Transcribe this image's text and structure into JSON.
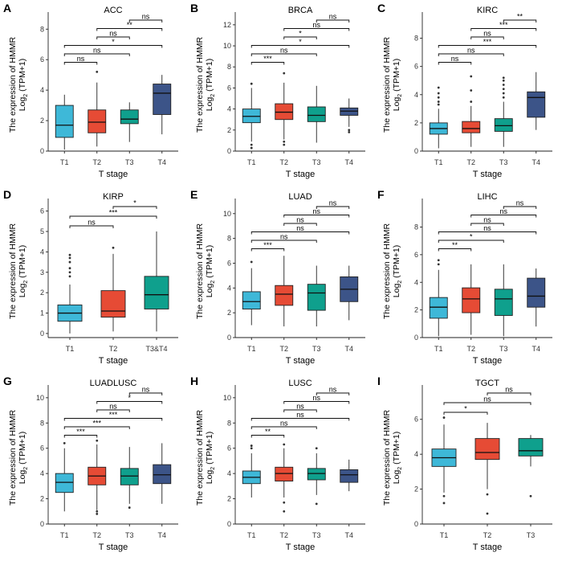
{
  "chart_data": [
    {
      "type": "boxplot",
      "letter": "A",
      "title": "ACC",
      "xlabel": "T stage",
      "ylabel_line1": "The expression of HMMR",
      "ylabel_line2_main": "Log",
      "ylabel_line2_sub": "2",
      "ylabel_line2_rest": " (TPM+1)",
      "ylim": [
        0,
        8.7
      ],
      "yticks": [
        0,
        2,
        4,
        6,
        8
      ],
      "categories": [
        "T1",
        "T2",
        "T3",
        "T4"
      ],
      "boxes": [
        {
          "q1": 0.9,
          "median": 1.7,
          "q3": 3.0,
          "low": 0.1,
          "high": 3.7,
          "outliers": []
        },
        {
          "q1": 1.2,
          "median": 1.9,
          "q3": 2.7,
          "low": 0.3,
          "high": 4.5,
          "outliers": [
            5.2
          ]
        },
        {
          "q1": 1.8,
          "median": 2.1,
          "q3": 2.7,
          "low": 0.6,
          "high": 3.2,
          "outliers": []
        },
        {
          "q1": 2.4,
          "median": 3.8,
          "q3": 4.4,
          "low": 1.1,
          "high": 5.0,
          "outliers": []
        }
      ],
      "comparisons": [
        {
          "from": "T1",
          "to": "T2",
          "label": "ns"
        },
        {
          "from": "T1",
          "to": "T3",
          "label": "ns"
        },
        {
          "from": "T1",
          "to": "T4",
          "label": "*"
        },
        {
          "from": "T2",
          "to": "T3",
          "label": "ns"
        },
        {
          "from": "T2",
          "to": "T4",
          "label": "**"
        },
        {
          "from": "T3",
          "to": "T4",
          "label": "ns"
        }
      ]
    },
    {
      "type": "boxplot",
      "letter": "B",
      "title": "BRCA",
      "xlabel": "T stage",
      "ylabel_line1": "The expression of HMMR",
      "ylabel_line2_main": "Log",
      "ylabel_line2_sub": "2",
      "ylabel_line2_rest": " (TPM+1)",
      "ylim": [
        0,
        12.6
      ],
      "yticks": [
        0,
        2,
        4,
        6,
        8,
        10,
        12
      ],
      "categories": [
        "T1",
        "T2",
        "T3",
        "T4"
      ],
      "boxes": [
        {
          "q1": 2.7,
          "median": 3.3,
          "q3": 4.0,
          "low": 0.9,
          "high": 6.0,
          "outliers": [
            6.4,
            0.6,
            0.3
          ]
        },
        {
          "q1": 3.0,
          "median": 3.7,
          "q3": 4.5,
          "low": 1.1,
          "high": 6.5,
          "outliers": [
            7.4,
            0.9,
            0.6
          ]
        },
        {
          "q1": 2.8,
          "median": 3.4,
          "q3": 4.2,
          "low": 0.8,
          "high": 6.2,
          "outliers": []
        },
        {
          "q1": 3.4,
          "median": 3.8,
          "q3": 4.1,
          "low": 2.3,
          "high": 5.0,
          "outliers": [
            2.0,
            1.8
          ]
        }
      ],
      "comparisons": [
        {
          "from": "T1",
          "to": "T2",
          "label": "***"
        },
        {
          "from": "T1",
          "to": "T3",
          "label": "ns"
        },
        {
          "from": "T1",
          "to": "T4",
          "label": "*"
        },
        {
          "from": "T2",
          "to": "T3",
          "label": "*"
        },
        {
          "from": "T2",
          "to": "T4",
          "label": "ns"
        },
        {
          "from": "T3",
          "to": "T4",
          "label": "ns"
        }
      ]
    },
    {
      "type": "boxplot",
      "letter": "C",
      "title": "KIRC",
      "xlabel": "T stage",
      "ylabel_line1": "The expression of HMMR",
      "ylabel_line2_main": "Log",
      "ylabel_line2_sub": "2",
      "ylabel_line2_rest": " (TPM+1)",
      "ylim": [
        0,
        9.4
      ],
      "yticks": [
        0,
        2,
        4,
        6,
        8
      ],
      "categories": [
        "T1",
        "T2",
        "T3",
        "T4"
      ],
      "boxes": [
        {
          "q1": 1.2,
          "median": 1.6,
          "q3": 2.0,
          "low": 0.2,
          "high": 3.0,
          "outliers": [
            3.3,
            3.5,
            3.8,
            4.1,
            4.5
          ]
        },
        {
          "q1": 1.3,
          "median": 1.6,
          "q3": 2.1,
          "low": 0.3,
          "high": 3.2,
          "outliers": [
            3.5,
            4.3,
            5.3
          ]
        },
        {
          "q1": 1.4,
          "median": 1.8,
          "q3": 2.3,
          "low": 0.3,
          "high": 3.5,
          "outliers": [
            3.8,
            4.1,
            4.4,
            4.7,
            5.0,
            5.2
          ]
        },
        {
          "q1": 2.4,
          "median": 3.8,
          "q3": 4.2,
          "low": 1.5,
          "high": 5.6,
          "outliers": []
        }
      ],
      "comparisons": [
        {
          "from": "T1",
          "to": "T2",
          "label": "ns"
        },
        {
          "from": "T1",
          "to": "T3",
          "label": "ns"
        },
        {
          "from": "T1",
          "to": "T4",
          "label": "***"
        },
        {
          "from": "T2",
          "to": "T3",
          "label": "ns"
        },
        {
          "from": "T2",
          "to": "T4",
          "label": "***"
        },
        {
          "from": "T3",
          "to": "T4",
          "label": "**"
        }
      ]
    },
    {
      "type": "boxplot",
      "letter": "D",
      "title": "KIRP",
      "xlabel": "T stage",
      "ylabel_line1": "The expression of HMMR",
      "ylabel_line2_main": "Log",
      "ylabel_line2_sub": "2",
      "ylabel_line2_rest": " (TPM+1)",
      "ylim": [
        -0.2,
        6.3
      ],
      "yticks": [
        0,
        1,
        2,
        3,
        4,
        5,
        6
      ],
      "categories": [
        "T1",
        "T2",
        "T3&T4"
      ],
      "boxes": [
        {
          "q1": 0.6,
          "median": 1.0,
          "q3": 1.4,
          "low": 0.0,
          "high": 2.4,
          "outliers": [
            2.8,
            3.0,
            3.2,
            3.5,
            3.7,
            3.85
          ]
        },
        {
          "q1": 0.8,
          "median": 1.1,
          "q3": 2.1,
          "low": 0.1,
          "high": 3.9,
          "outliers": [
            4.2
          ]
        },
        {
          "q1": 1.2,
          "median": 1.9,
          "q3": 2.8,
          "low": 0.1,
          "high": 5.0,
          "outliers": []
        }
      ],
      "comparisons": [
        {
          "from": "T1",
          "to": "T2",
          "label": "ns"
        },
        {
          "from": "T1",
          "to": "T3&T4",
          "label": "***"
        },
        {
          "from": "T2",
          "to": "T3&T4",
          "label": "*"
        }
      ]
    },
    {
      "type": "boxplot",
      "letter": "E",
      "title": "LUAD",
      "xlabel": "T stage",
      "ylabel_line1": "The expression of HMMR",
      "ylabel_line2_main": "Log",
      "ylabel_line2_sub": "2",
      "ylabel_line2_rest": " (TPM+1)",
      "ylim": [
        0,
        10.7
      ],
      "yticks": [
        0,
        2,
        4,
        6,
        8,
        10
      ],
      "categories": [
        "T1",
        "T2",
        "T3",
        "T4"
      ],
      "boxes": [
        {
          "q1": 2.3,
          "median": 2.9,
          "q3": 3.7,
          "low": 1.0,
          "high": 5.6,
          "outliers": [
            6.1
          ]
        },
        {
          "q1": 2.6,
          "median": 3.5,
          "q3": 4.2,
          "low": 0.9,
          "high": 6.6,
          "outliers": []
        },
        {
          "q1": 2.2,
          "median": 3.6,
          "q3": 4.3,
          "low": 0.9,
          "high": 5.8,
          "outliers": []
        },
        {
          "q1": 2.9,
          "median": 3.9,
          "q3": 4.9,
          "low": 1.4,
          "high": 5.8,
          "outliers": []
        }
      ],
      "comparisons": [
        {
          "from": "T1",
          "to": "T2",
          "label": "***"
        },
        {
          "from": "T1",
          "to": "T3",
          "label": "ns"
        },
        {
          "from": "T1",
          "to": "T4",
          "label": "ns"
        },
        {
          "from": "T2",
          "to": "T3",
          "label": "ns"
        },
        {
          "from": "T2",
          "to": "T4",
          "label": "ns"
        },
        {
          "from": "T3",
          "to": "T4",
          "label": "ns"
        }
      ]
    },
    {
      "type": "boxplot",
      "letter": "F",
      "title": "LIHC",
      "xlabel": "T stage",
      "ylabel_line1": "The expression of HMMR",
      "ylabel_line2_main": "Log",
      "ylabel_line2_sub": "2",
      "ylabel_line2_rest": " (TPM+1)",
      "ylim": [
        0,
        9.6
      ],
      "yticks": [
        0,
        2,
        4,
        6,
        8
      ],
      "categories": [
        "T1",
        "T2",
        "T3",
        "T4"
      ],
      "boxes": [
        {
          "q1": 1.4,
          "median": 2.2,
          "q3": 2.9,
          "low": 0.1,
          "high": 4.9,
          "outliers": [
            5.3,
            5.6
          ]
        },
        {
          "q1": 1.8,
          "median": 2.8,
          "q3": 3.6,
          "low": 0.2,
          "high": 5.3,
          "outliers": []
        },
        {
          "q1": 1.6,
          "median": 2.8,
          "q3": 3.5,
          "low": 0.1,
          "high": 5.3,
          "outliers": []
        },
        {
          "q1": 2.2,
          "median": 3.0,
          "q3": 4.3,
          "low": 0.8,
          "high": 5.0,
          "outliers": []
        }
      ],
      "comparisons": [
        {
          "from": "T1",
          "to": "T2",
          "label": "**"
        },
        {
          "from": "T1",
          "to": "T3",
          "label": "*"
        },
        {
          "from": "T1",
          "to": "T4",
          "label": "ns"
        },
        {
          "from": "T2",
          "to": "T3",
          "label": "ns"
        },
        {
          "from": "T2",
          "to": "T4",
          "label": "ns"
        },
        {
          "from": "T3",
          "to": "T4",
          "label": "ns"
        }
      ]
    },
    {
      "type": "boxplot",
      "letter": "G",
      "title": "LUADLUSC",
      "xlabel": "T stage",
      "ylabel_line1": "The expression of HMMR",
      "ylabel_line2_main": "Log",
      "ylabel_line2_sub": "2",
      "ylabel_line2_rest": " (TPM+1)",
      "ylim": [
        0,
        10.5
      ],
      "yticks": [
        0,
        2,
        4,
        6,
        8,
        10
      ],
      "categories": [
        "T1",
        "T2",
        "T3",
        "T4"
      ],
      "boxes": [
        {
          "q1": 2.5,
          "median": 3.3,
          "q3": 4.0,
          "low": 1.0,
          "high": 6.0,
          "outliers": [
            6.4
          ]
        },
        {
          "q1": 3.1,
          "median": 3.8,
          "q3": 4.5,
          "low": 1.1,
          "high": 6.3,
          "outliers": [
            6.6,
            1.0,
            0.8
          ]
        },
        {
          "q1": 3.1,
          "median": 3.8,
          "q3": 4.4,
          "low": 1.6,
          "high": 6.1,
          "outliers": [
            1.3
          ]
        },
        {
          "q1": 3.2,
          "median": 3.9,
          "q3": 4.7,
          "low": 1.6,
          "high": 6.4,
          "outliers": []
        }
      ],
      "comparisons": [
        {
          "from": "T1",
          "to": "T2",
          "label": "***"
        },
        {
          "from": "T1",
          "to": "T3",
          "label": "***"
        },
        {
          "from": "T1",
          "to": "T4",
          "label": "***"
        },
        {
          "from": "T2",
          "to": "T3",
          "label": "ns"
        },
        {
          "from": "T2",
          "to": "T4",
          "label": "*"
        },
        {
          "from": "T3",
          "to": "T4",
          "label": "ns"
        }
      ]
    },
    {
      "type": "boxplot",
      "letter": "H",
      "title": "LUSC",
      "xlabel": "T stage",
      "ylabel_line1": "The expression of HMMR",
      "ylabel_line2_main": "Log",
      "ylabel_line2_sub": "2",
      "ylabel_line2_rest": " (TPM+1)",
      "ylim": [
        0,
        10.5
      ],
      "yticks": [
        0,
        2,
        4,
        6,
        8,
        10
      ],
      "categories": [
        "T1",
        "T2",
        "T3",
        "T4"
      ],
      "boxes": [
        {
          "q1": 3.2,
          "median": 3.7,
          "q3": 4.2,
          "low": 2.1,
          "high": 5.6,
          "outliers": [
            6.0,
            6.2
          ]
        },
        {
          "q1": 3.4,
          "median": 4.0,
          "q3": 4.5,
          "low": 2.1,
          "high": 6.0,
          "outliers": [
            6.3,
            1.7,
            1.0
          ]
        },
        {
          "q1": 3.5,
          "median": 4.0,
          "q3": 4.4,
          "low": 2.3,
          "high": 5.6,
          "outliers": [
            6.0,
            1.6
          ]
        },
        {
          "q1": 3.3,
          "median": 3.9,
          "q3": 4.3,
          "low": 2.6,
          "high": 5.1,
          "outliers": []
        }
      ],
      "comparisons": [
        {
          "from": "T1",
          "to": "T2",
          "label": "**"
        },
        {
          "from": "T1",
          "to": "T3",
          "label": "ns"
        },
        {
          "from": "T1",
          "to": "T4",
          "label": "ns"
        },
        {
          "from": "T2",
          "to": "T3",
          "label": "ns"
        },
        {
          "from": "T2",
          "to": "T4",
          "label": "ns"
        },
        {
          "from": "T3",
          "to": "T4",
          "label": "ns"
        }
      ]
    },
    {
      "type": "boxplot",
      "letter": "I",
      "title": "TGCT",
      "xlabel": "T stage",
      "ylabel_line1": "The expression of HMMR",
      "ylabel_line2_main": "Log",
      "ylabel_line2_sub": "2",
      "ylabel_line2_rest": " (TPM+1)",
      "ylim": [
        0,
        7.6
      ],
      "yticks": [
        0,
        2,
        4,
        6
      ],
      "categories": [
        "T1",
        "T2",
        "T3"
      ],
      "boxes": [
        {
          "q1": 3.3,
          "median": 3.8,
          "q3": 4.3,
          "low": 1.8,
          "high": 5.7,
          "outliers": [
            6.1,
            1.6,
            1.2
          ]
        },
        {
          "q1": 3.7,
          "median": 4.1,
          "q3": 4.9,
          "low": 2.0,
          "high": 5.8,
          "outliers": [
            1.7,
            0.6
          ]
        },
        {
          "q1": 3.9,
          "median": 4.2,
          "q3": 4.9,
          "low": 3.3,
          "high": 5.1,
          "outliers": [
            1.6
          ]
        }
      ],
      "comparisons": [
        {
          "from": "T1",
          "to": "T2",
          "label": "*"
        },
        {
          "from": "T1",
          "to": "T3",
          "label": "ns"
        },
        {
          "from": "T2",
          "to": "T3",
          "label": "ns"
        }
      ]
    }
  ],
  "colors": {
    "T1": "#3eb8d8",
    "T2": "#e64b35",
    "T3": "#0fa08d",
    "T4": "#3c5488",
    "T3&T4": "#0fa08d"
  }
}
